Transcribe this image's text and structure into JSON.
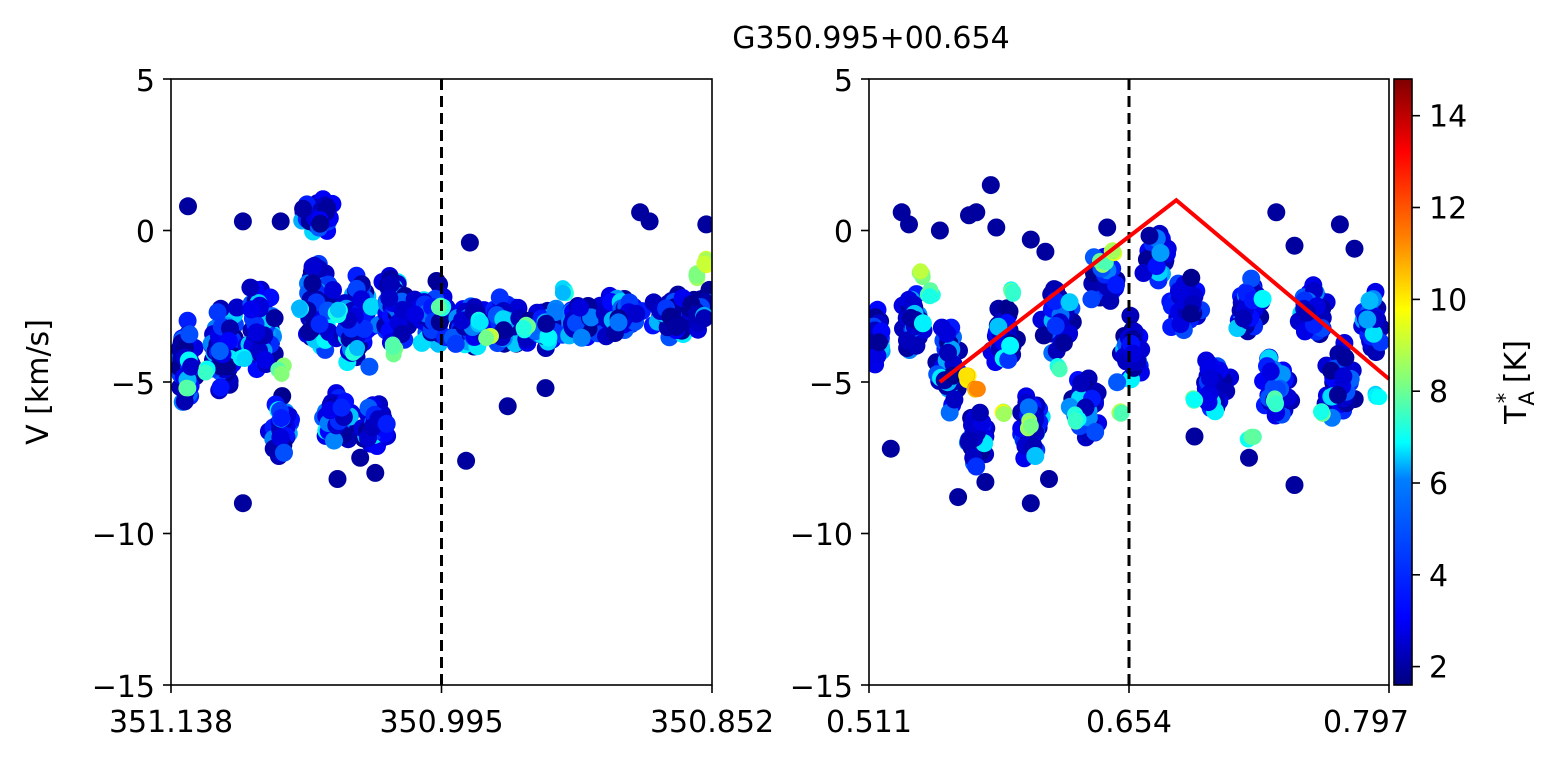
{
  "figure": {
    "suptitle": "G350.995+00.654"
  },
  "chart_data": [
    {
      "type": "scatter",
      "panel": "left",
      "xlabel": "",
      "ylabel": "V [km/s]",
      "xlim": [
        351.138,
        350.852
      ],
      "ylim": [
        -15,
        5
      ],
      "xticks": [
        "351.138",
        "350.995",
        "350.852"
      ],
      "yticks": [
        "5",
        "0",
        "−5",
        "−10",
        "−15"
      ],
      "reference_line": {
        "x": 350.995,
        "style": "dashed",
        "color": "#000000"
      },
      "color_by": "T*A",
      "cloud": [
        {
          "x": 351.13,
          "y": -4.5,
          "ext_x": 0.006,
          "ext_y": 1.8,
          "n": 70
        },
        {
          "x": 351.11,
          "y": -4.0,
          "ext_x": 0.01,
          "ext_y": 1.8,
          "n": 90
        },
        {
          "x": 351.09,
          "y": -3.3,
          "ext_x": 0.012,
          "ext_y": 2.0,
          "n": 90
        },
        {
          "x": 351.08,
          "y": -6.5,
          "ext_x": 0.01,
          "ext_y": 1.4,
          "n": 50
        },
        {
          "x": 351.06,
          "y": -2.5,
          "ext_x": 0.012,
          "ext_y": 2.2,
          "n": 80
        },
        {
          "x": 351.05,
          "y": -6.2,
          "ext_x": 0.012,
          "ext_y": 1.3,
          "n": 60
        },
        {
          "x": 351.06,
          "y": 0.5,
          "ext_x": 0.012,
          "ext_y": 0.9,
          "n": 45
        },
        {
          "x": 351.04,
          "y": -3.0,
          "ext_x": 0.014,
          "ext_y": 2.0,
          "n": 80
        },
        {
          "x": 351.03,
          "y": -6.5,
          "ext_x": 0.012,
          "ext_y": 1.2,
          "n": 40
        },
        {
          "x": 351.02,
          "y": -2.5,
          "ext_x": 0.012,
          "ext_y": 1.8,
          "n": 70
        },
        {
          "x": 351.0,
          "y": -2.8,
          "ext_x": 0.014,
          "ext_y": 1.5,
          "n": 60
        },
        {
          "x": 350.98,
          "y": -3.2,
          "ext_x": 0.014,
          "ext_y": 1.2,
          "n": 60
        },
        {
          "x": 350.96,
          "y": -3.0,
          "ext_x": 0.014,
          "ext_y": 1.2,
          "n": 60
        },
        {
          "x": 350.94,
          "y": -3.2,
          "ext_x": 0.014,
          "ext_y": 1.1,
          "n": 60
        },
        {
          "x": 350.92,
          "y": -3.0,
          "ext_x": 0.014,
          "ext_y": 1.0,
          "n": 60
        },
        {
          "x": 350.9,
          "y": -2.8,
          "ext_x": 0.014,
          "ext_y": 1.0,
          "n": 60
        },
        {
          "x": 350.875,
          "y": -2.8,
          "ext_x": 0.014,
          "ext_y": 1.0,
          "n": 60
        },
        {
          "x": 350.86,
          "y": -2.5,
          "ext_x": 0.01,
          "ext_y": 1.0,
          "n": 40
        }
      ],
      "bright_spots": [
        {
          "x": 351.13,
          "y": -5.2,
          "tk": 8.5
        },
        {
          "x": 351.12,
          "y": -4.6,
          "tk": 8.0
        },
        {
          "x": 351.1,
          "y": -4.2,
          "tk": 7.5
        },
        {
          "x": 351.08,
          "y": -4.6,
          "tk": 9.0
        },
        {
          "x": 351.07,
          "y": -2.6,
          "tk": 7.0
        },
        {
          "x": 351.05,
          "y": -2.8,
          "tk": 7.0
        },
        {
          "x": 351.04,
          "y": -4.0,
          "tk": 7.0
        },
        {
          "x": 351.02,
          "y": -3.9,
          "tk": 9.0
        },
        {
          "x": 350.995,
          "y": -2.5,
          "tk": 8.0
        },
        {
          "x": 350.975,
          "y": -3.0,
          "tk": 7.0
        },
        {
          "x": 350.97,
          "y": -3.5,
          "tk": 9.5
        },
        {
          "x": 350.95,
          "y": -3.2,
          "tk": 8.0
        },
        {
          "x": 350.93,
          "y": -2.0,
          "tk": 7.0
        },
        {
          "x": 350.86,
          "y": -1.5,
          "tk": 9.0
        },
        {
          "x": 350.855,
          "y": -1.0,
          "tk": 10.0
        }
      ],
      "outliers": [
        {
          "x": 351.129,
          "y": 0.8
        },
        {
          "x": 351.1,
          "y": 0.3
        },
        {
          "x": 351.08,
          "y": 0.3
        },
        {
          "x": 351.1,
          "y": -9.0
        },
        {
          "x": 351.05,
          "y": -8.2
        },
        {
          "x": 351.038,
          "y": -7.5
        },
        {
          "x": 351.03,
          "y": -8.0
        },
        {
          "x": 350.98,
          "y": -0.4
        },
        {
          "x": 350.96,
          "y": -5.8
        },
        {
          "x": 350.982,
          "y": -7.6
        },
        {
          "x": 350.94,
          "y": -5.2
        },
        {
          "x": 350.89,
          "y": 0.6
        },
        {
          "x": 350.885,
          "y": 0.3
        },
        {
          "x": 350.855,
          "y": 0.2
        }
      ]
    },
    {
      "type": "scatter",
      "panel": "right",
      "xlabel": "",
      "ylabel": "",
      "xlim": [
        0.511,
        0.797
      ],
      "ylim": [
        -15,
        5
      ],
      "xticks": [
        "0.511",
        "0.654",
        "0.797"
      ],
      "yticks": [
        "5",
        "0",
        "−5",
        "−10",
        "−15"
      ],
      "reference_line": {
        "x": 0.654,
        "style": "dashed",
        "color": "#000000"
      },
      "fit_line": {
        "color": "#ff0000",
        "x": [
          0.55,
          0.68,
          0.797
        ],
        "y": [
          -5.0,
          1.0,
          -4.9
        ]
      },
      "color_by": "T*A",
      "cloud": [
        {
          "x": 0.515,
          "y": -3.5,
          "ext_x": 0.006,
          "ext_y": 1.6,
          "n": 40
        },
        {
          "x": 0.535,
          "y": -3.0,
          "ext_x": 0.01,
          "ext_y": 1.6,
          "n": 45
        },
        {
          "x": 0.555,
          "y": -4.5,
          "ext_x": 0.01,
          "ext_y": 2.0,
          "n": 45
        },
        {
          "x": 0.57,
          "y": -6.8,
          "ext_x": 0.01,
          "ext_y": 1.4,
          "n": 45
        },
        {
          "x": 0.585,
          "y": -3.5,
          "ext_x": 0.01,
          "ext_y": 1.6,
          "n": 45
        },
        {
          "x": 0.6,
          "y": -6.5,
          "ext_x": 0.01,
          "ext_y": 1.4,
          "n": 45
        },
        {
          "x": 0.615,
          "y": -3.0,
          "ext_x": 0.012,
          "ext_y": 1.8,
          "n": 45
        },
        {
          "x": 0.63,
          "y": -5.8,
          "ext_x": 0.01,
          "ext_y": 1.5,
          "n": 45
        },
        {
          "x": 0.64,
          "y": -1.5,
          "ext_x": 0.01,
          "ext_y": 1.4,
          "n": 40
        },
        {
          "x": 0.655,
          "y": -4.0,
          "ext_x": 0.01,
          "ext_y": 1.5,
          "n": 45
        },
        {
          "x": 0.67,
          "y": -0.8,
          "ext_x": 0.01,
          "ext_y": 1.2,
          "n": 40
        },
        {
          "x": 0.685,
          "y": -2.5,
          "ext_x": 0.012,
          "ext_y": 1.8,
          "n": 45
        },
        {
          "x": 0.7,
          "y": -5.0,
          "ext_x": 0.012,
          "ext_y": 1.8,
          "n": 45
        },
        {
          "x": 0.72,
          "y": -2.5,
          "ext_x": 0.012,
          "ext_y": 1.6,
          "n": 45
        },
        {
          "x": 0.735,
          "y": -5.2,
          "ext_x": 0.012,
          "ext_y": 1.6,
          "n": 45
        },
        {
          "x": 0.755,
          "y": -2.6,
          "ext_x": 0.012,
          "ext_y": 1.6,
          "n": 45
        },
        {
          "x": 0.77,
          "y": -5.0,
          "ext_x": 0.012,
          "ext_y": 1.8,
          "n": 45
        },
        {
          "x": 0.787,
          "y": -3.0,
          "ext_x": 0.008,
          "ext_y": 1.6,
          "n": 45
        }
      ],
      "bright_spots": [
        {
          "x": 0.54,
          "y": -1.4,
          "tk": 9.5
        },
        {
          "x": 0.545,
          "y": -2.0,
          "tk": 8.0
        },
        {
          "x": 0.565,
          "y": -4.8,
          "tk": 11.0
        },
        {
          "x": 0.57,
          "y": -5.2,
          "tk": 12.0
        },
        {
          "x": 0.585,
          "y": -6.0,
          "tk": 10.0
        },
        {
          "x": 0.59,
          "y": -2.0,
          "tk": 8.0
        },
        {
          "x": 0.6,
          "y": -6.4,
          "tk": 9.0
        },
        {
          "x": 0.615,
          "y": -4.5,
          "tk": 8.0
        },
        {
          "x": 0.625,
          "y": -6.2,
          "tk": 8.0
        },
        {
          "x": 0.64,
          "y": -1.0,
          "tk": 9.0
        },
        {
          "x": 0.645,
          "y": -0.6,
          "tk": 10.0
        },
        {
          "x": 0.65,
          "y": -6.0,
          "tk": 9.0
        },
        {
          "x": 0.69,
          "y": -5.5,
          "tk": 8.0
        },
        {
          "x": 0.72,
          "y": -6.8,
          "tk": 8.0
        },
        {
          "x": 0.735,
          "y": -5.6,
          "tk": 8.5
        },
        {
          "x": 0.76,
          "y": -6.0,
          "tk": 8.0
        },
        {
          "x": 0.79,
          "y": -5.5,
          "tk": 7.0
        }
      ],
      "outliers": [
        {
          "x": 0.529,
          "y": 0.6
        },
        {
          "x": 0.533,
          "y": 0.2
        },
        {
          "x": 0.55,
          "y": 0.0
        },
        {
          "x": 0.566,
          "y": 0.5
        },
        {
          "x": 0.57,
          "y": 0.6
        },
        {
          "x": 0.578,
          "y": 1.5
        },
        {
          "x": 0.581,
          "y": 0.1
        },
        {
          "x": 0.6,
          "y": -0.3
        },
        {
          "x": 0.608,
          "y": -0.7
        },
        {
          "x": 0.642,
          "y": 0.1
        },
        {
          "x": 0.56,
          "y": -8.8
        },
        {
          "x": 0.575,
          "y": -8.3
        },
        {
          "x": 0.6,
          "y": -9.0
        },
        {
          "x": 0.61,
          "y": -8.2
        },
        {
          "x": 0.523,
          "y": -7.2
        },
        {
          "x": 0.735,
          "y": 0.6
        },
        {
          "x": 0.745,
          "y": -0.5
        },
        {
          "x": 0.77,
          "y": 0.2
        },
        {
          "x": 0.778,
          "y": -0.6
        },
        {
          "x": 0.745,
          "y": -8.4
        },
        {
          "x": 0.72,
          "y": -7.5
        },
        {
          "x": 0.69,
          "y": -6.8
        }
      ]
    }
  ],
  "colorbar": {
    "label_main": "T",
    "label_sup": "*",
    "label_sub": "A",
    "label_unit": " [K]",
    "range": [
      1.6,
      14.8
    ],
    "ticks": [
      {
        "value": 2,
        "label": "2"
      },
      {
        "value": 4,
        "label": "4"
      },
      {
        "value": 6,
        "label": "6"
      },
      {
        "value": 8,
        "label": "8"
      },
      {
        "value": 10,
        "label": "10"
      },
      {
        "value": 12,
        "label": "12"
      },
      {
        "value": 14,
        "label": "14"
      }
    ],
    "colormap": [
      "#00007f",
      "#0000ff",
      "#007fff",
      "#00ffff",
      "#7fff7f",
      "#ffff00",
      "#ff7f00",
      "#ff0000",
      "#7f0000"
    ]
  }
}
